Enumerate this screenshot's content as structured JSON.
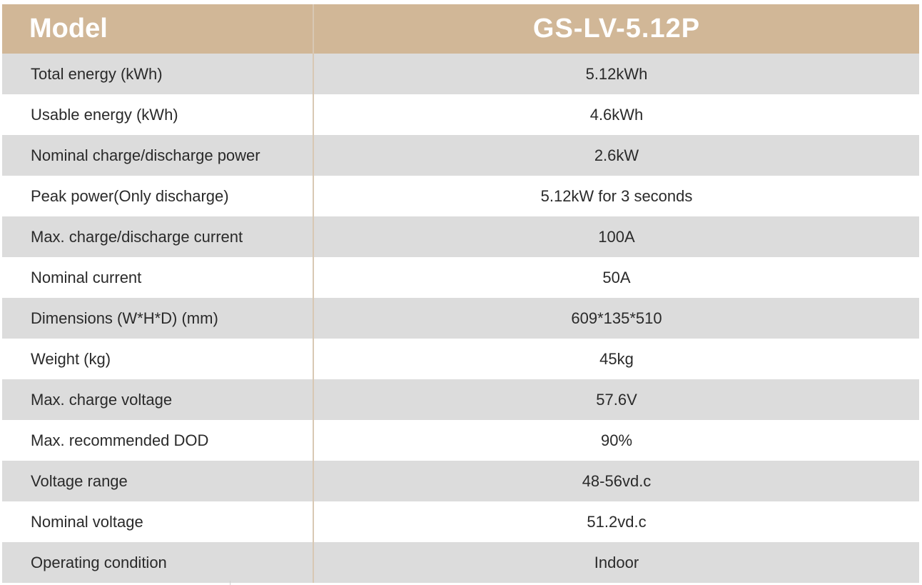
{
  "header": {
    "label": "Model",
    "value": "GS-LV-5.12P"
  },
  "colors": {
    "header_bg": "#d1b797",
    "row_shade": "#dcdcdc",
    "divider": "#d8c8b4"
  },
  "rows": [
    {
      "label": "Total energy (kWh)",
      "value": "5.12kWh"
    },
    {
      "label": "Usable energy (kWh)",
      "value": "4.6kWh"
    },
    {
      "label": "Nominal charge/discharge power",
      "value": "2.6kW"
    },
    {
      "label": "Peak power(Only discharge)",
      "value": "5.12kW for 3 seconds"
    },
    {
      "label": "Max. charge/discharge current",
      "value": "100A"
    },
    {
      "label": "Nominal current",
      "value": "50A"
    },
    {
      "label": "Dimensions (W*H*D) (mm)",
      "value": "609*135*510"
    },
    {
      "label": "Weight (kg)",
      "value": "45kg"
    },
    {
      "label": "Max. charge voltage",
      "value": "57.6V"
    },
    {
      "label": "Max. recommended DOD",
      "value": "90%"
    },
    {
      "label": "Voltage range",
      "value": "48-56vd.c"
    },
    {
      "label": "Nominal voltage",
      "value": "51.2vd.c"
    },
    {
      "label": "Operating condition",
      "value": "Indoor"
    }
  ]
}
